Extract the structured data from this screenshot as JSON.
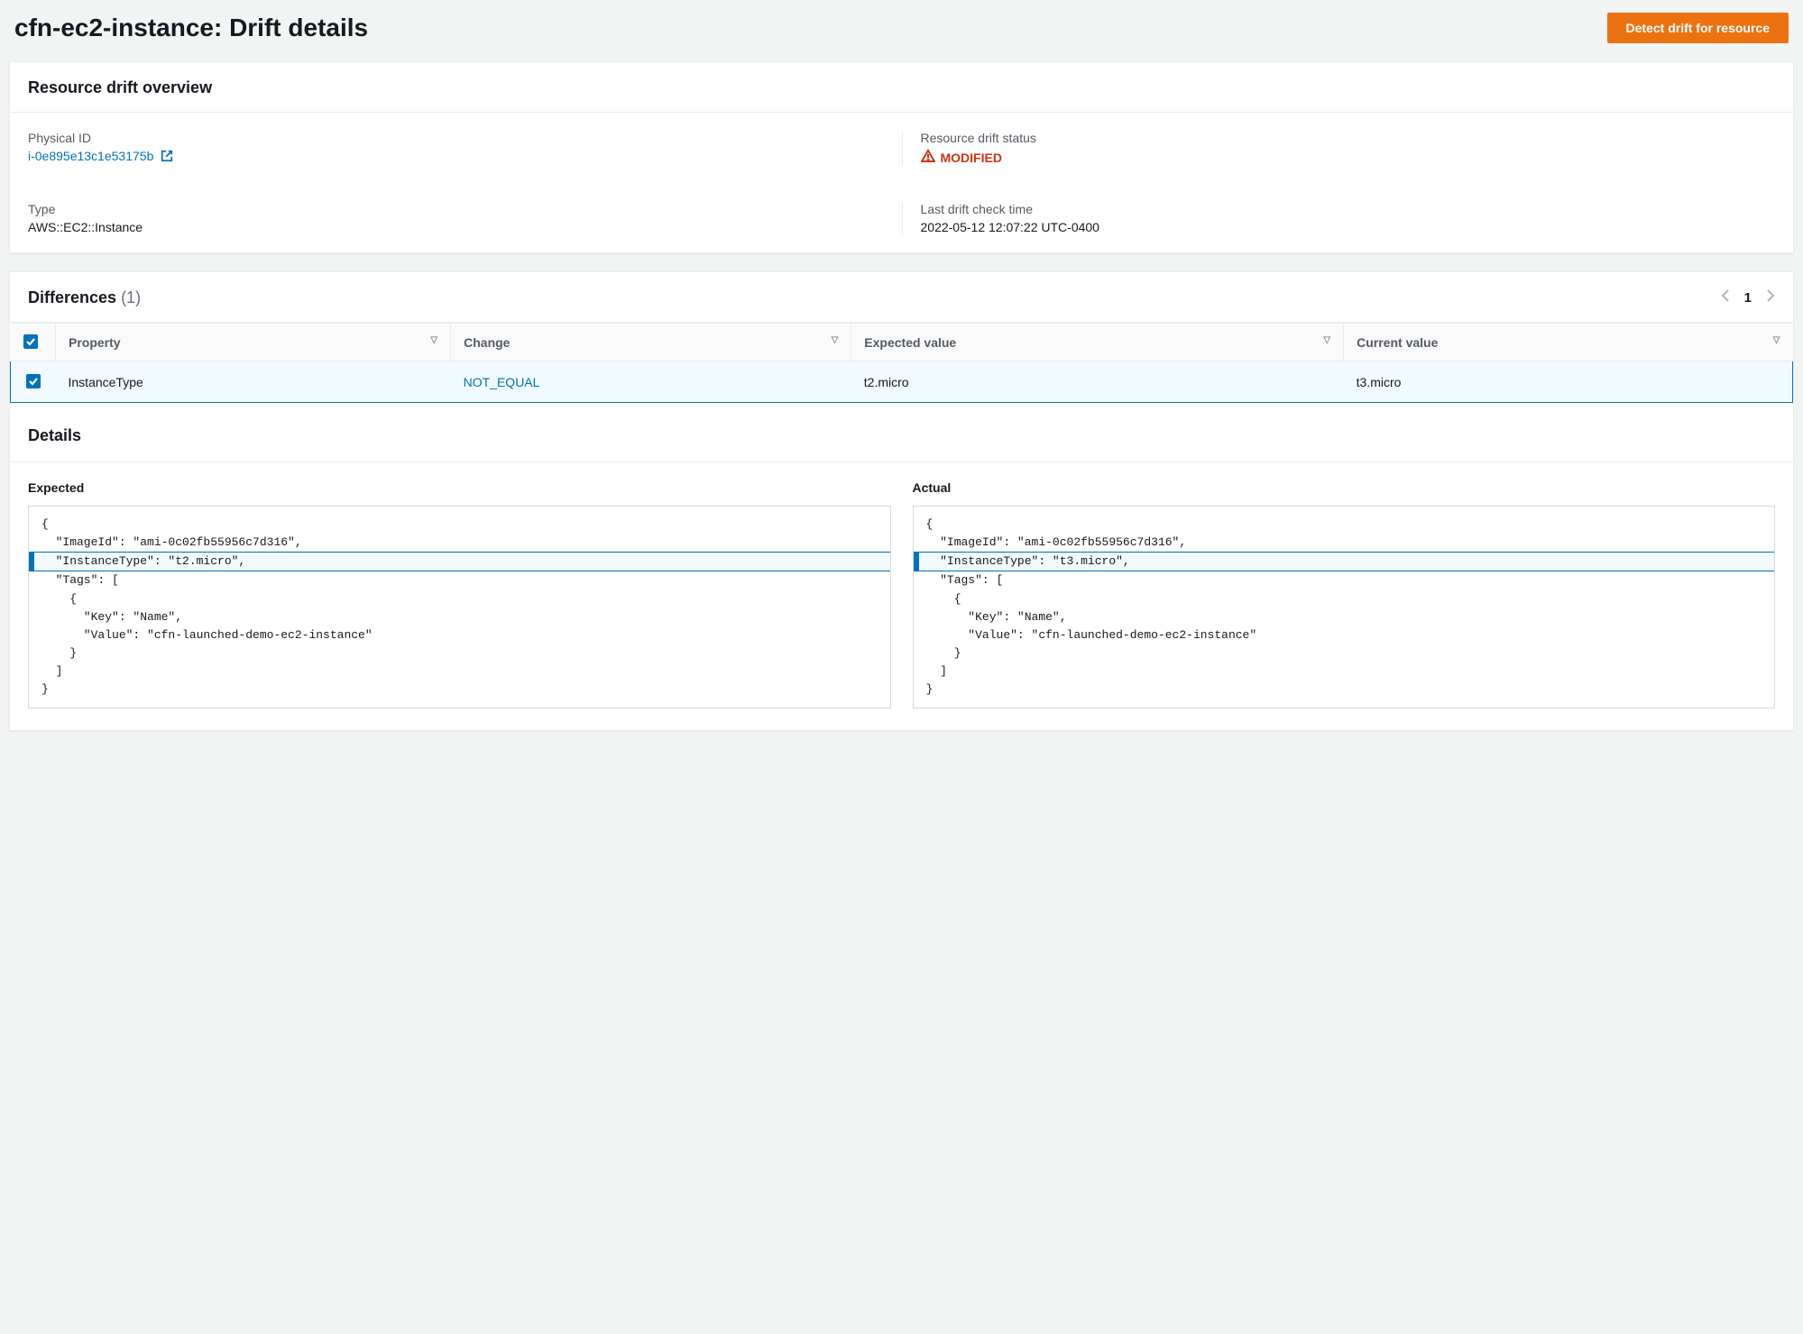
{
  "header": {
    "title": "cfn-ec2-instance: Drift details",
    "detect_button": "Detect drift for resource"
  },
  "overview": {
    "title": "Resource drift overview",
    "physical_id_label": "Physical ID",
    "physical_id_value": "i-0e895e13c1e53175b",
    "drift_status_label": "Resource drift status",
    "drift_status_value": "MODIFIED",
    "type_label": "Type",
    "type_value": "AWS::EC2::Instance",
    "last_check_label": "Last drift check time",
    "last_check_value": "2022-05-12 12:07:22 UTC-0400"
  },
  "differences": {
    "title": "Differences",
    "count": "(1)",
    "page": "1",
    "columns": {
      "property": "Property",
      "change": "Change",
      "expected": "Expected value",
      "current": "Current value"
    },
    "row": {
      "property": "InstanceType",
      "change": "NOT_EQUAL",
      "expected": "t2.micro",
      "current": "t3.micro"
    }
  },
  "details": {
    "title": "Details",
    "expected_label": "Expected",
    "actual_label": "Actual",
    "expected_lines": [
      "{",
      "  \"ImageId\": \"ami-0c02fb55956c7d316\",",
      "  \"InstanceType\": \"t2.micro\",",
      "  \"Tags\": [",
      "    {",
      "      \"Key\": \"Name\",",
      "      \"Value\": \"cfn-launched-demo-ec2-instance\"",
      "    }",
      "  ]",
      "}"
    ],
    "expected_highlight_index": 2,
    "actual_lines": [
      "{",
      "  \"ImageId\": \"ami-0c02fb55956c7d316\",",
      "  \"InstanceType\": \"t3.micro\",",
      "  \"Tags\": [",
      "    {",
      "      \"Key\": \"Name\",",
      "      \"Value\": \"cfn-launched-demo-ec2-instance\"",
      "    }",
      "  ]",
      "}"
    ],
    "actual_highlight_index": 2
  },
  "colors": {
    "primary_button_bg": "#ec7211",
    "link": "#0073bb",
    "danger": "#d13212",
    "border": "#eaeded",
    "muted": "#687078"
  }
}
